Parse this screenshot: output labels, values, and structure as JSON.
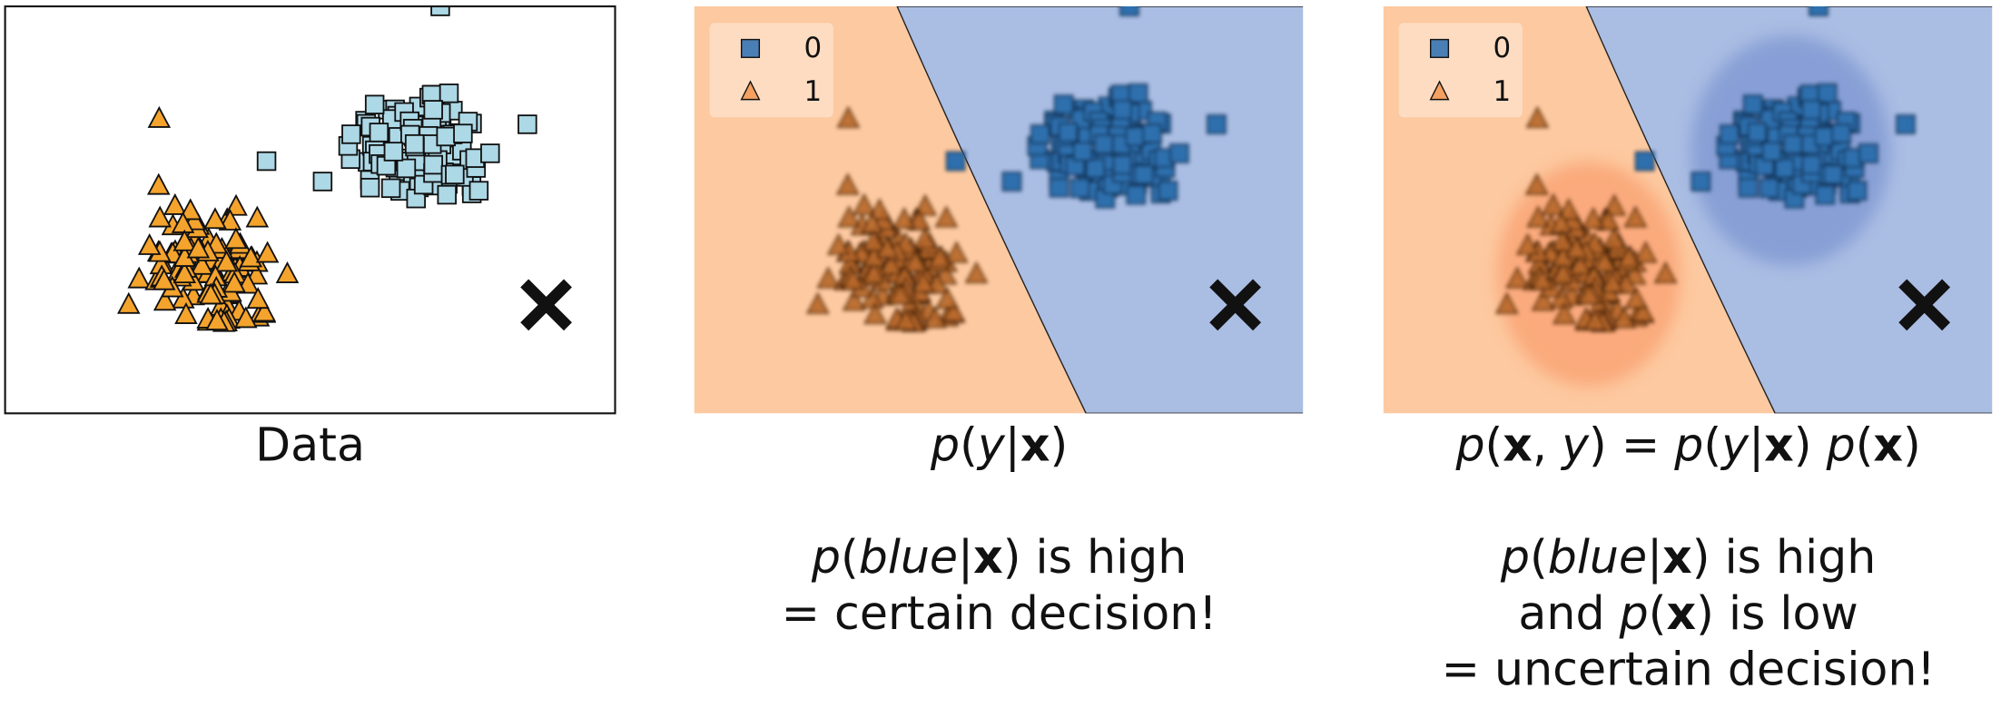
{
  "panels": [
    {
      "caption": [
        {
          "text": "Data",
          "style": "n"
        }
      ]
    },
    {
      "legend": [
        "0",
        "1"
      ],
      "caption": [
        {
          "text": "p",
          "style": "i"
        },
        {
          "text": "(",
          "style": "n"
        },
        {
          "text": "y",
          "style": "i"
        },
        {
          "text": "|",
          "style": "n"
        },
        {
          "text": "x",
          "style": "b"
        },
        {
          "text": ")",
          "style": "n"
        }
      ],
      "note": [
        [
          {
            "text": "p",
            "style": "i"
          },
          {
            "text": "(",
            "style": "n"
          },
          {
            "text": "blue",
            "style": "i"
          },
          {
            "text": "|",
            "style": "n"
          },
          {
            "text": "x",
            "style": "b"
          },
          {
            "text": ") is high",
            "style": "n"
          }
        ],
        [
          {
            "text": "= certain decision!",
            "style": "n"
          }
        ]
      ]
    },
    {
      "legend": [
        "0",
        "1"
      ],
      "caption": [
        {
          "text": "p",
          "style": "i"
        },
        {
          "text": "(",
          "style": "n"
        },
        {
          "text": "x",
          "style": "b"
        },
        {
          "text": ", ",
          "style": "n"
        },
        {
          "text": "y",
          "style": "i"
        },
        {
          "text": ") = ",
          "style": "n"
        },
        {
          "text": "p",
          "style": "i"
        },
        {
          "text": "(",
          "style": "n"
        },
        {
          "text": "y",
          "style": "i"
        },
        {
          "text": "|",
          "style": "n"
        },
        {
          "text": "x",
          "style": "b"
        },
        {
          "text": ") ",
          "style": "n"
        },
        {
          "text": "p",
          "style": "i"
        },
        {
          "text": "(",
          "style": "n"
        },
        {
          "text": "x",
          "style": "b"
        },
        {
          "text": ")",
          "style": "n"
        }
      ],
      "note": [
        [
          {
            "text": "p",
            "style": "i"
          },
          {
            "text": "(",
            "style": "n"
          },
          {
            "text": "blue",
            "style": "i"
          },
          {
            "text": "|",
            "style": "n"
          },
          {
            "text": "x",
            "style": "b"
          },
          {
            "text": ") is high",
            "style": "n"
          }
        ],
        [
          {
            "text": "and ",
            "style": "n"
          },
          {
            "text": "p",
            "style": "i"
          },
          {
            "text": "(",
            "style": "n"
          },
          {
            "text": "x",
            "style": "b"
          },
          {
            "text": ") is low",
            "style": "n"
          }
        ],
        [
          {
            "text": "= uncertain decision!",
            "style": "n"
          }
        ]
      ]
    }
  ]
}
